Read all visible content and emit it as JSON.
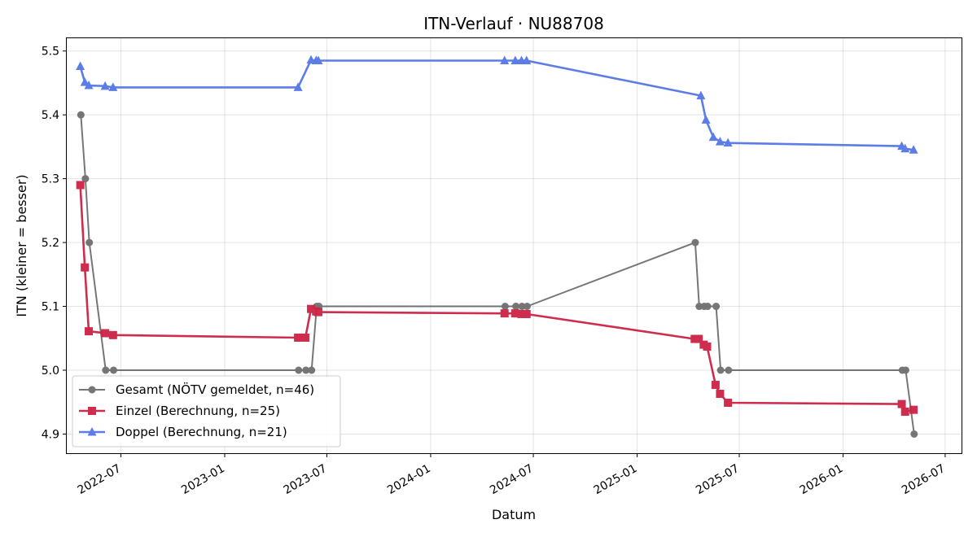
{
  "chart_data": {
    "type": "line",
    "title": "ITN-Verlauf · NU88708",
    "xlabel": "Datum",
    "ylabel": "ITN  (kleiner = besser)",
    "x_axis_type": "date",
    "xlim": [
      "2022-03-27",
      "2026-07-30"
    ],
    "ylim": [
      4.87,
      5.52
    ],
    "x_ticks": [
      {
        "date": "2022-07-01",
        "label": "2022-07"
      },
      {
        "date": "2023-01-01",
        "label": "2023-01"
      },
      {
        "date": "2023-07-01",
        "label": "2023-07"
      },
      {
        "date": "2024-01-01",
        "label": "2024-01"
      },
      {
        "date": "2024-07-01",
        "label": "2024-07"
      },
      {
        "date": "2025-01-01",
        "label": "2025-01"
      },
      {
        "date": "2025-07-01",
        "label": "2025-07"
      },
      {
        "date": "2026-01-01",
        "label": "2026-01"
      },
      {
        "date": "2026-07-01",
        "label": "2026-07"
      }
    ],
    "y_ticks": [
      {
        "value": 4.9,
        "label": "4.9"
      },
      {
        "value": 5.0,
        "label": "5.0"
      },
      {
        "value": 5.1,
        "label": "5.1"
      },
      {
        "value": 5.2,
        "label": "5.2"
      },
      {
        "value": 5.3,
        "label": "5.3"
      },
      {
        "value": 5.4,
        "label": "5.4"
      },
      {
        "value": 5.5,
        "label": "5.5"
      }
    ],
    "grid": true,
    "legend_position": "bottom-left",
    "series": [
      {
        "name": "Gesamt (NÖTV gemeldet, n=46)",
        "color": "#555555",
        "marker": "circle",
        "points": [
          [
            "2022-04-21",
            5.4
          ],
          [
            "2022-04-29",
            5.3
          ],
          [
            "2022-05-06",
            5.2
          ],
          [
            "2022-06-04",
            5.0
          ],
          [
            "2022-06-18",
            5.0
          ],
          [
            "2023-05-12",
            5.0
          ],
          [
            "2023-05-25",
            5.0
          ],
          [
            "2023-06-04",
            5.0
          ],
          [
            "2023-06-13",
            5.1
          ],
          [
            "2023-06-17",
            5.1
          ],
          [
            "2024-05-12",
            5.1
          ],
          [
            "2024-05-31",
            5.1
          ],
          [
            "2024-06-11",
            5.1
          ],
          [
            "2024-06-20",
            5.1
          ],
          [
            "2025-04-14",
            5.2
          ],
          [
            "2025-04-21",
            5.1
          ],
          [
            "2025-04-30",
            5.1
          ],
          [
            "2025-05-06",
            5.1
          ],
          [
            "2025-05-21",
            5.1
          ],
          [
            "2025-05-29",
            5.0
          ],
          [
            "2025-06-12",
            5.0
          ],
          [
            "2026-04-16",
            5.0
          ],
          [
            "2026-04-22",
            5.0
          ],
          [
            "2026-05-07",
            4.9
          ]
        ]
      },
      {
        "name": "Einzel (Berechnung, n=25)",
        "color": "#cc2244",
        "marker": "square",
        "points": [
          [
            "2022-04-20",
            5.29
          ],
          [
            "2022-04-28",
            5.161
          ],
          [
            "2022-05-05",
            5.061
          ],
          [
            "2022-06-03",
            5.058
          ],
          [
            "2022-06-17",
            5.055
          ],
          [
            "2023-05-11",
            5.051
          ],
          [
            "2023-05-24",
            5.051
          ],
          [
            "2023-06-03",
            5.096
          ],
          [
            "2023-06-12",
            5.092
          ],
          [
            "2023-06-16",
            5.091
          ],
          [
            "2024-05-11",
            5.089
          ],
          [
            "2024-05-30",
            5.089
          ],
          [
            "2024-06-10",
            5.088
          ],
          [
            "2024-06-19",
            5.088
          ],
          [
            "2025-04-13",
            5.049
          ],
          [
            "2025-04-20",
            5.049
          ],
          [
            "2025-04-29",
            5.04
          ],
          [
            "2025-05-05",
            5.037
          ],
          [
            "2025-05-20",
            4.977
          ],
          [
            "2025-05-28",
            4.963
          ],
          [
            "2025-06-11",
            4.949
          ],
          [
            "2026-04-15",
            4.947
          ],
          [
            "2026-04-21",
            4.935
          ],
          [
            "2026-05-06",
            4.938
          ]
        ]
      },
      {
        "name": "Doppel (Berechnung, n=21)",
        "color": "#4a6fe3",
        "marker": "triangle",
        "points": [
          [
            "2022-04-20",
            5.476
          ],
          [
            "2022-04-28",
            5.451
          ],
          [
            "2022-05-05",
            5.446
          ],
          [
            "2022-06-03",
            5.445
          ],
          [
            "2022-06-17",
            5.443
          ],
          [
            "2023-05-11",
            5.443
          ],
          [
            "2023-06-03",
            5.486
          ],
          [
            "2023-06-12",
            5.485
          ],
          [
            "2023-06-16",
            5.485
          ],
          [
            "2024-05-11",
            5.485
          ],
          [
            "2024-05-30",
            5.485
          ],
          [
            "2024-06-10",
            5.485
          ],
          [
            "2024-06-19",
            5.485
          ],
          [
            "2025-04-24",
            5.43
          ],
          [
            "2025-05-03",
            5.392
          ],
          [
            "2025-05-16",
            5.365
          ],
          [
            "2025-05-28",
            5.358
          ],
          [
            "2025-06-11",
            5.356
          ],
          [
            "2026-04-15",
            5.351
          ],
          [
            "2026-04-21",
            5.347
          ],
          [
            "2026-05-06",
            5.345
          ]
        ]
      }
    ]
  }
}
